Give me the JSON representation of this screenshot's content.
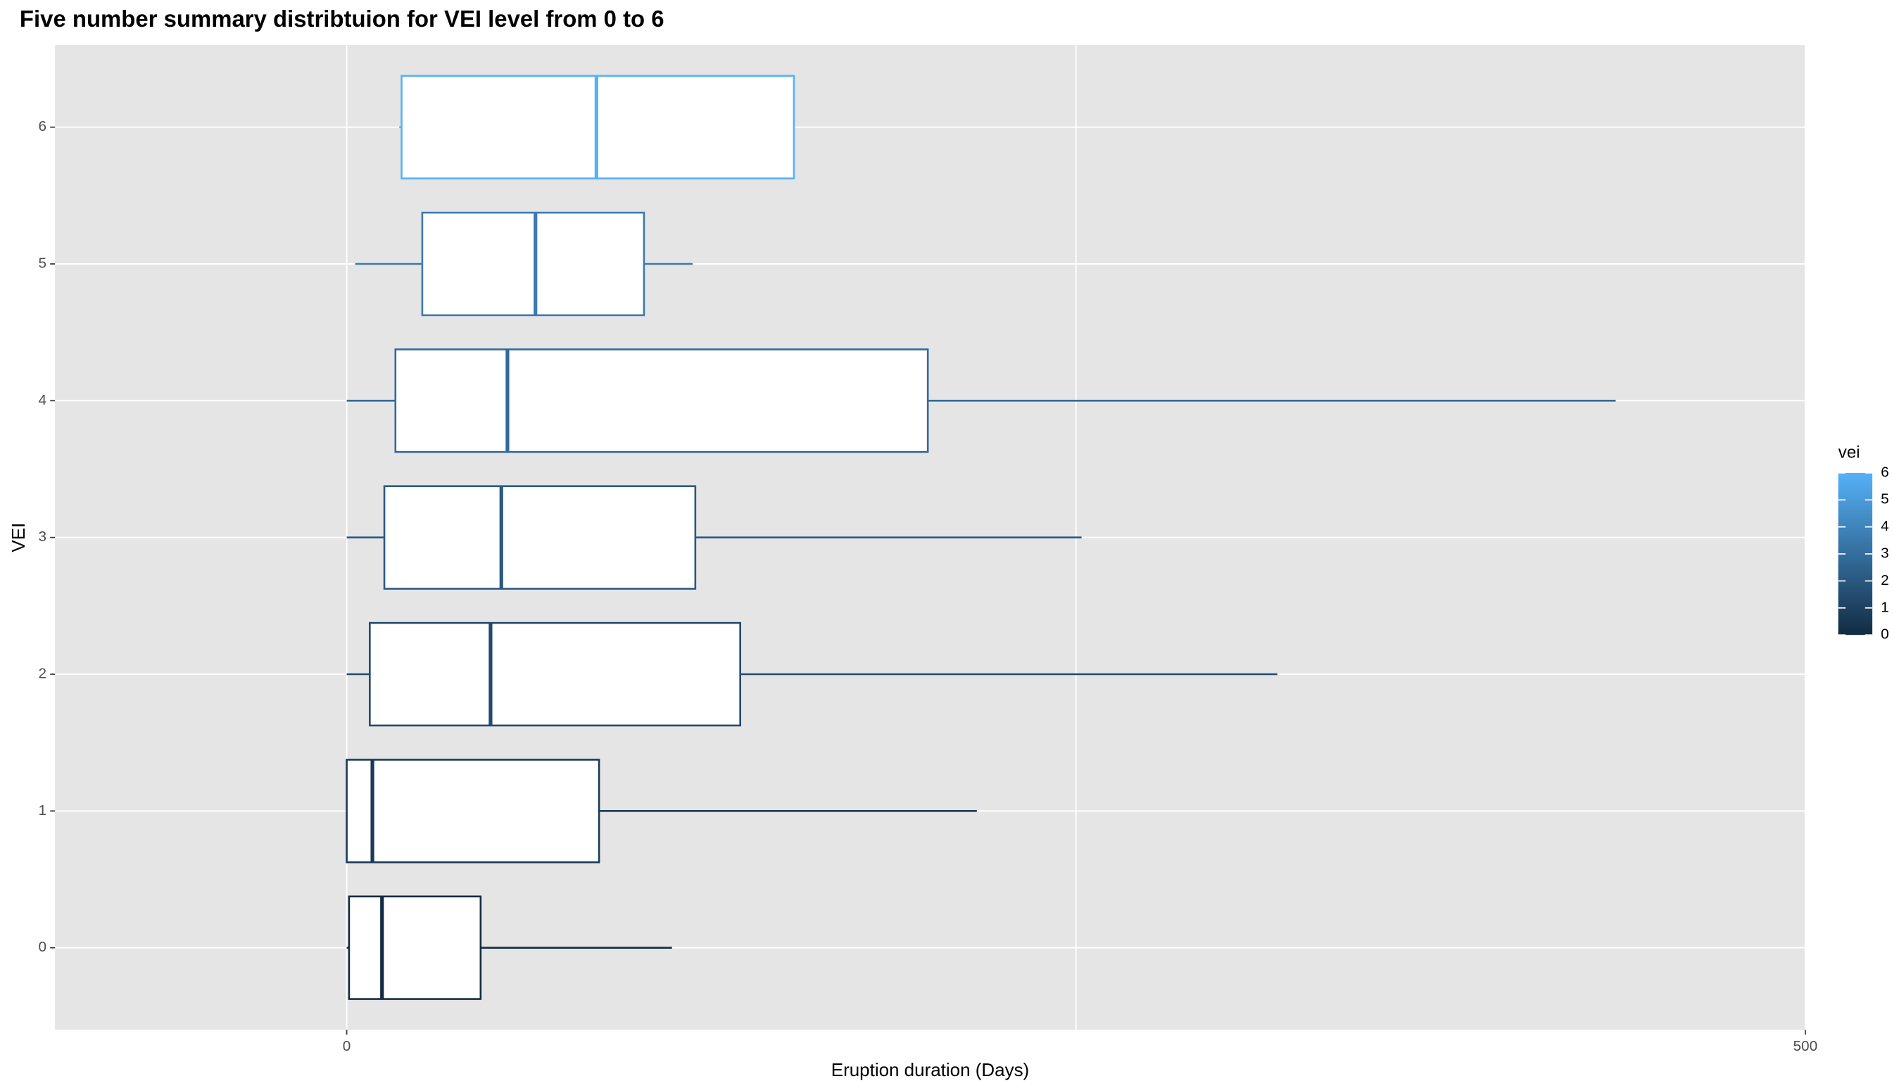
{
  "chart_data": {
    "type": "boxplot",
    "orientation": "horizontal",
    "title": "Five number summary distribtuion for VEI level from 0 to 6",
    "x_label": "Eruption duration (Days)",
    "y_label": "VEI",
    "categories": [
      "0",
      "1",
      "2",
      "3",
      "4",
      "5",
      "6"
    ],
    "min": [
      0,
      0,
      0,
      0,
      0,
      2.9,
      18
    ],
    "q1": [
      0.8,
      0,
      7.9,
      12.9,
      16.7,
      25.9,
      18.8
    ],
    "median": [
      12.1,
      8.8,
      49.3,
      53,
      55.1,
      64.7,
      85.6
    ],
    "q3": [
      45.9,
      86.5,
      134.9,
      119.5,
      199.2,
      101.9,
      153.3
    ],
    "max": [
      111.5,
      216,
      319,
      251.9,
      435,
      118.6,
      153.3
    ],
    "colors": [
      "#132B43",
      "#1A3A58",
      "#22496E",
      "#2A5985",
      "#33699C",
      "#3C79B3",
      "#56B1F7"
    ],
    "xlim": [
      -100,
      500
    ],
    "xticks": [
      0,
      500
    ],
    "xminor": [
      250
    ],
    "grid": true,
    "legend": {
      "title": "vei",
      "lim": [
        0,
        6
      ],
      "ticks": [
        0,
        1,
        2,
        3,
        4,
        5,
        6
      ],
      "low": "#132B43",
      "high": "#56B1F7",
      "position": "right"
    }
  }
}
